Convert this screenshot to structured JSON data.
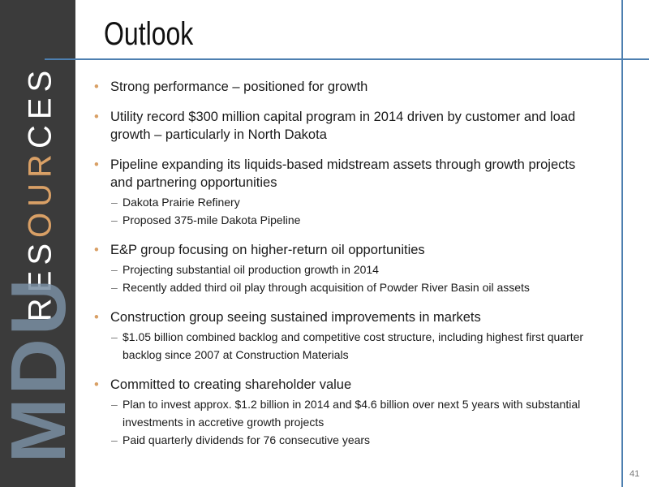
{
  "slide": {
    "title": "Outlook",
    "brand": [
      "RES",
      "OUR",
      "CES"
    ],
    "logo": "MDU",
    "page_number": "41",
    "bullets": [
      {
        "text": "Strong performance – positioned for growth",
        "subs": []
      },
      {
        "text": "Utility record $300 million capital program in 2014 driven by customer and load growth – particularly in North Dakota",
        "subs": []
      },
      {
        "text": "Pipeline expanding its liquids-based midstream assets through growth projects and partnering opportunities",
        "subs": [
          "Dakota Prairie Refinery",
          "Proposed 375-mile Dakota Pipeline"
        ]
      },
      {
        "text": "E&P group focusing on higher-return oil opportunities",
        "subs": [
          "Projecting substantial oil production growth in 2014",
          "Recently added third oil play through acquisition of Powder River Basin oil assets"
        ]
      },
      {
        "text": "Construction group seeing sustained improvements in markets",
        "subs": [
          "$1.05 billion combined backlog and competitive cost structure, including highest first quarter backlog since 2007 at Construction Materials"
        ]
      },
      {
        "text": "Committed to creating shareholder value",
        "subs": [
          "Plan to invest approx. $1.2 billion in 2014 and $4.6 billion over next 5 years with substantial investments in accretive growth projects",
          "Paid quarterly dividends for 76 consecutive years"
        ]
      }
    ]
  }
}
